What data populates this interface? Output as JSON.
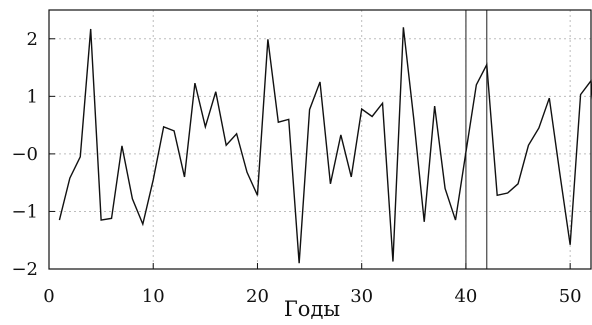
{
  "chart_data": {
    "type": "line",
    "title": "",
    "xlabel": "Годы",
    "ylabel": "",
    "xlim": [
      0,
      52
    ],
    "ylim": [
      -2,
      2.5
    ],
    "x_ticks": [
      0,
      10,
      20,
      30,
      40,
      50
    ],
    "x_tick_labels": [
      "0",
      "10",
      "20",
      "30",
      "40",
      "50"
    ],
    "y_ticks": [
      -2,
      -1,
      0,
      1,
      2
    ],
    "y_tick_labels": [
      "−2",
      "−1",
      "−0",
      "1",
      "2"
    ],
    "grid": true,
    "legend": "none",
    "vertical_markers": [
      40,
      42
    ],
    "series": [
      {
        "x": [
          1,
          2,
          3,
          4,
          5,
          6,
          7,
          8,
          9,
          10,
          11,
          12,
          13,
          14,
          15,
          16,
          17,
          18,
          19,
          20,
          21,
          22,
          23,
          24,
          25,
          26,
          27,
          28,
          29,
          30,
          31,
          32,
          33,
          34,
          35,
          36,
          37,
          38,
          39,
          40,
          41,
          42,
          43,
          44,
          45,
          46,
          47,
          48,
          49,
          50,
          51,
          52
        ],
        "values": [
          -1.15,
          -0.42,
          -0.05,
          2.17,
          -1.15,
          -1.12,
          0.14,
          -0.78,
          -1.22,
          -0.45,
          0.47,
          0.4,
          -0.4,
          1.23,
          0.47,
          1.08,
          0.15,
          0.35,
          -0.32,
          -0.72,
          1.99,
          0.55,
          0.6,
          -1.9,
          0.77,
          1.25,
          -0.52,
          0.33,
          -0.4,
          0.78,
          0.65,
          0.88,
          -1.87,
          2.2,
          0.6,
          -1.18,
          0.83,
          -0.6,
          -1.15,
          0.03,
          1.2,
          1.55,
          -0.72,
          -0.68,
          -0.52,
          0.15,
          0.45,
          0.97,
          -0.33,
          -1.58,
          1.03,
          1.27
        ]
      }
    ],
    "x_extension": {
      "x": 52.5,
      "value": 0.25
    },
    "colors": {
      "line": "#111111",
      "grid": "#bdbdbd",
      "frame": "#111111",
      "marker": "#333333"
    }
  }
}
